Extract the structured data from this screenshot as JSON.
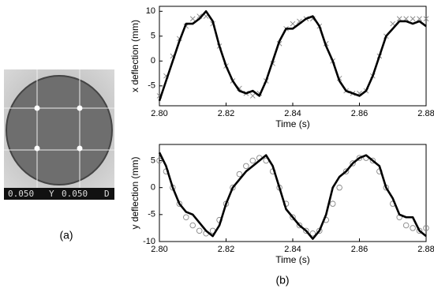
{
  "photo": {
    "readout": [
      "0.050",
      "Y",
      "0.050",
      "D"
    ]
  },
  "panel_labels": [
    "(a)",
    "(b)"
  ],
  "chart_data": [
    {
      "type": "line",
      "xlabel": "Time (s)",
      "ylabel": "x deflection (mm)",
      "x": [
        2.8,
        2.802,
        2.804,
        2.806,
        2.808,
        2.81,
        2.812,
        2.814,
        2.816,
        2.818,
        2.82,
        2.822,
        2.824,
        2.826,
        2.828,
        2.83,
        2.832,
        2.834,
        2.836,
        2.838,
        2.84,
        2.842,
        2.844,
        2.846,
        2.848,
        2.85,
        2.852,
        2.854,
        2.856,
        2.858,
        2.86,
        2.862,
        2.864,
        2.866,
        2.868,
        2.87,
        2.872,
        2.874,
        2.876,
        2.878,
        2.88
      ],
      "series": [
        {
          "color": "#888888",
          "marker": "x",
          "values": [
            -7,
            -3,
            1,
            4.5,
            7,
            8.5,
            9,
            9,
            7.5,
            3,
            -1,
            -4,
            -5.5,
            -6.5,
            -7,
            -6.5,
            -4,
            -0.5,
            3.5,
            6.5,
            7.5,
            8,
            8.5,
            8.5,
            7,
            3.5,
            0,
            -3.5,
            -6,
            -6.5,
            -6.5,
            -6,
            -3,
            1,
            5,
            7.5,
            8.5,
            8.5,
            8.5,
            8.5,
            8.5
          ]
        },
        {
          "color": "#000000",
          "marker": "none",
          "values": [
            -8,
            -4,
            0,
            4,
            7.5,
            7.5,
            8.5,
            10,
            8,
            3,
            -1,
            -4,
            -6,
            -6.5,
            -6,
            -7,
            -4,
            0,
            4,
            6.5,
            6.5,
            7.5,
            8.5,
            9,
            7,
            3,
            0,
            -4,
            -6,
            -6.5,
            -7,
            -6,
            -3,
            1,
            5,
            6.5,
            8,
            8,
            7.5,
            8,
            7
          ]
        }
      ],
      "xlim": [
        2.8,
        2.88
      ],
      "ylim": [
        -9,
        11
      ],
      "xticks": [
        {
          "value": 2.8,
          "label": "2.80"
        },
        2.82,
        2.84,
        2.86,
        2.88
      ],
      "yticks": [
        -5,
        0,
        5,
        10
      ]
    },
    {
      "type": "line",
      "xlabel": "Time (s)",
      "ylabel": "y deflection (mm)",
      "x": [
        2.8,
        2.802,
        2.804,
        2.806,
        2.808,
        2.81,
        2.812,
        2.814,
        2.816,
        2.818,
        2.82,
        2.822,
        2.824,
        2.826,
        2.828,
        2.83,
        2.832,
        2.834,
        2.836,
        2.838,
        2.84,
        2.842,
        2.844,
        2.846,
        2.848,
        2.85,
        2.852,
        2.854,
        2.856,
        2.858,
        2.86,
        2.862,
        2.864,
        2.866,
        2.868,
        2.87,
        2.872,
        2.874,
        2.876,
        2.878,
        2.88
      ],
      "series": [
        {
          "color": "#888888",
          "marker": "o",
          "values": [
            5,
            3,
            0,
            -3,
            -5.5,
            -7,
            -8,
            -8.5,
            -8,
            -6,
            -3,
            0,
            2.5,
            4,
            5,
            5.5,
            5,
            3,
            0,
            -3,
            -5.5,
            -7,
            -8,
            -8.5,
            -8,
            -6,
            -3,
            0,
            3,
            4.5,
            5.5,
            5.5,
            5,
            3,
            0,
            -3,
            -5.5,
            -7,
            -7.5,
            -8,
            -7.5
          ]
        },
        {
          "color": "#000000",
          "marker": "none",
          "values": [
            6.5,
            4,
            0,
            -3,
            -4.5,
            -5,
            -6.5,
            -8,
            -9,
            -7,
            -3,
            0,
            1.5,
            3,
            4,
            5,
            6,
            4,
            0,
            -4,
            -5.5,
            -7,
            -8,
            -9.5,
            -8,
            -5,
            0,
            2,
            3,
            4.5,
            5.5,
            6,
            5,
            4,
            0,
            -2,
            -5,
            -5.5,
            -5.5,
            -8,
            -9
          ]
        }
      ],
      "xlim": [
        2.8,
        2.88
      ],
      "ylim": [
        -10,
        8
      ],
      "xticks": [
        {
          "value": 2.8,
          "label": "2.80"
        },
        2.82,
        2.84,
        2.86,
        2.88
      ],
      "yticks": [
        -10,
        -5,
        0,
        5
      ]
    }
  ]
}
